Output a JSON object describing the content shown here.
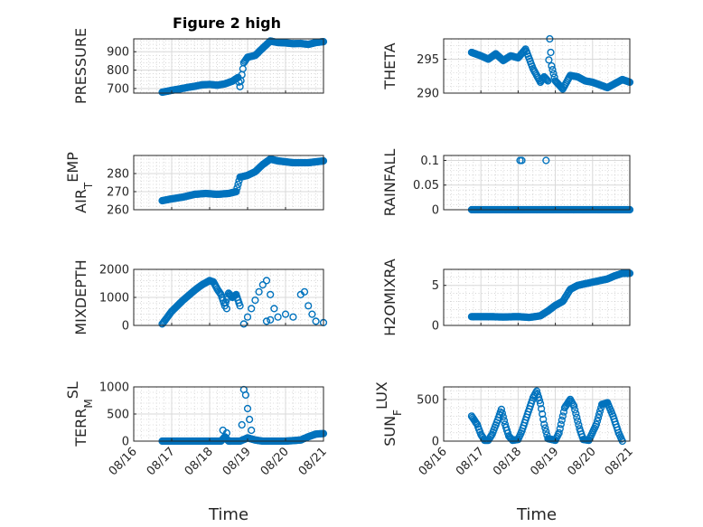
{
  "figure": {
    "title": "Figure 2 high"
  },
  "chart_data": [
    {
      "type": "scatter",
      "ylabel": "PRESSURE",
      "xlabel": "",
      "xlim": [
        0,
        5
      ],
      "ylim": [
        675,
        970
      ],
      "yticks": [
        700,
        800,
        900
      ],
      "xticks": [],
      "grid": true,
      "minor_grid": true,
      "color": "#0072BD",
      "title": "Figure 2 high",
      "keypoints": [
        [
          0.75,
          680
        ],
        [
          0.9,
          686
        ],
        [
          1.0,
          690
        ],
        [
          1.2,
          697
        ],
        [
          1.4,
          705
        ],
        [
          1.6,
          712
        ],
        [
          1.8,
          720
        ],
        [
          2.0,
          722
        ],
        [
          2.2,
          718
        ],
        [
          2.4,
          725
        ],
        [
          2.6,
          740
        ],
        [
          2.75,
          760
        ],
        [
          2.8,
          710
        ],
        [
          2.9,
          840
        ],
        [
          3.0,
          870
        ],
        [
          3.2,
          880
        ],
        [
          3.4,
          920
        ],
        [
          3.6,
          958
        ],
        [
          3.8,
          950
        ],
        [
          4.0,
          948
        ],
        [
          4.2,
          944
        ],
        [
          4.4,
          945
        ],
        [
          4.6,
          940
        ],
        [
          4.8,
          950
        ],
        [
          5.0,
          955
        ]
      ]
    },
    {
      "type": "scatter",
      "ylabel": "THETA",
      "xlabel": "",
      "xlim": [
        0,
        5
      ],
      "ylim": [
        290,
        298
      ],
      "yticks": [
        290,
        295
      ],
      "xticks": [],
      "grid": true,
      "minor_grid": true,
      "color": "#0072BD",
      "keypoints": [
        [
          0.75,
          296
        ],
        [
          1.0,
          295.5
        ],
        [
          1.2,
          295.0
        ],
        [
          1.4,
          295.8
        ],
        [
          1.6,
          294.8
        ],
        [
          1.8,
          295.5
        ],
        [
          2.0,
          295.2
        ],
        [
          2.2,
          296.5
        ],
        [
          2.4,
          293.6
        ],
        [
          2.5,
          292.6
        ],
        [
          2.6,
          291.6
        ],
        [
          2.7,
          292.4
        ],
        [
          2.8,
          291.8
        ],
        [
          2.85,
          298
        ],
        [
          2.9,
          294
        ],
        [
          3.0,
          291.8
        ],
        [
          3.2,
          290.6
        ],
        [
          3.4,
          292.6
        ],
        [
          3.6,
          292.4
        ],
        [
          3.8,
          291.8
        ],
        [
          4.0,
          291.6
        ],
        [
          4.2,
          291.2
        ],
        [
          4.4,
          290.8
        ],
        [
          4.6,
          291.4
        ],
        [
          4.8,
          292.0
        ],
        [
          5.0,
          291.6
        ]
      ]
    },
    {
      "type": "scatter",
      "ylabel": "AIR_TEMP",
      "xlabel": "",
      "xlim": [
        0,
        5
      ],
      "ylim": [
        260,
        290
      ],
      "yticks": [
        260,
        270,
        280
      ],
      "xticks": [],
      "grid": true,
      "minor_grid": true,
      "color": "#0072BD",
      "keypoints": [
        [
          0.75,
          265
        ],
        [
          1.0,
          266
        ],
        [
          1.3,
          267
        ],
        [
          1.6,
          268.5
        ],
        [
          1.9,
          269
        ],
        [
          2.2,
          268.5
        ],
        [
          2.5,
          269
        ],
        [
          2.7,
          270
        ],
        [
          2.8,
          278
        ],
        [
          3.0,
          279
        ],
        [
          3.2,
          281
        ],
        [
          3.4,
          285
        ],
        [
          3.6,
          288
        ],
        [
          3.8,
          287
        ],
        [
          4.2,
          286
        ],
        [
          4.6,
          286
        ],
        [
          5.0,
          287
        ]
      ]
    },
    {
      "type": "scatter",
      "ylabel": "RAINFALL",
      "xlabel": "",
      "xlim": [
        0,
        5
      ],
      "ylim": [
        0,
        0.11
      ],
      "yticks": [
        0,
        0.05,
        0.1
      ],
      "xticks": [],
      "grid": true,
      "minor_grid": true,
      "color": "#0072BD",
      "keypoints": [
        [
          0.75,
          0
        ],
        [
          5.0,
          0
        ]
      ],
      "extra_points": [
        [
          2.05,
          0.1
        ],
        [
          2.1,
          0.1
        ],
        [
          2.75,
          0.1
        ]
      ]
    },
    {
      "type": "scatter",
      "ylabel": "MIXDEPTH",
      "xlabel": "",
      "xlim": [
        0,
        5
      ],
      "ylim": [
        0,
        2000
      ],
      "yticks": [
        0,
        1000,
        2000
      ],
      "xticks": [],
      "grid": true,
      "minor_grid": true,
      "color": "#0072BD",
      "keypoints": [
        [
          0.75,
          50
        ],
        [
          1.0,
          500
        ],
        [
          1.3,
          900
        ],
        [
          1.6,
          1250
        ],
        [
          1.8,
          1450
        ],
        [
          2.0,
          1600
        ],
        [
          2.1,
          1550
        ],
        [
          2.2,
          1300
        ],
        [
          2.3,
          1100
        ],
        [
          2.4,
          700
        ],
        [
          2.5,
          1150
        ],
        [
          2.6,
          1000
        ],
        [
          2.7,
          1100
        ],
        [
          2.8,
          700
        ]
      ],
      "extra_points": [
        [
          2.45,
          600
        ],
        [
          2.9,
          50
        ],
        [
          3.0,
          300
        ],
        [
          3.1,
          600
        ],
        [
          3.2,
          900
        ],
        [
          3.3,
          1200
        ],
        [
          3.4,
          1450
        ],
        [
          3.5,
          1600
        ],
        [
          3.6,
          1100
        ],
        [
          3.7,
          600
        ],
        [
          3.5,
          150
        ],
        [
          3.6,
          200
        ],
        [
          3.8,
          300
        ],
        [
          4.0,
          400
        ],
        [
          4.2,
          300
        ],
        [
          4.4,
          1100
        ],
        [
          4.5,
          1200
        ],
        [
          4.6,
          700
        ],
        [
          4.7,
          400
        ],
        [
          4.8,
          150
        ],
        [
          5.0,
          100
        ]
      ]
    },
    {
      "type": "scatter",
      "ylabel": "H2OMIXRA",
      "xlabel": "",
      "xlim": [
        0,
        5
      ],
      "ylim": [
        0,
        7
      ],
      "yticks": [
        0,
        5
      ],
      "xticks": [],
      "grid": true,
      "minor_grid": true,
      "color": "#0072BD",
      "keypoints": [
        [
          0.75,
          1.1
        ],
        [
          1.2,
          1.1
        ],
        [
          1.6,
          1.05
        ],
        [
          2.0,
          1.1
        ],
        [
          2.3,
          1.0
        ],
        [
          2.6,
          1.2
        ],
        [
          2.8,
          1.8
        ],
        [
          3.0,
          2.5
        ],
        [
          3.2,
          3.0
        ],
        [
          3.4,
          4.5
        ],
        [
          3.6,
          5.0
        ],
        [
          3.8,
          5.2
        ],
        [
          4.0,
          5.4
        ],
        [
          4.2,
          5.6
        ],
        [
          4.4,
          5.8
        ],
        [
          4.6,
          6.2
        ],
        [
          4.8,
          6.5
        ],
        [
          5.0,
          6.5
        ]
      ]
    },
    {
      "type": "scatter",
      "ylabel": "TERR_MSL",
      "xlabel": "Time",
      "xlim": [
        0,
        5
      ],
      "ylim": [
        0,
        1000
      ],
      "yticks": [
        0,
        500,
        1000
      ],
      "xticks": [
        "08/16",
        "08/17",
        "08/18",
        "08/19",
        "08/20",
        "08/21"
      ],
      "grid": true,
      "minor_grid": true,
      "color": "#0072BD",
      "keypoints": [
        [
          0.75,
          0
        ],
        [
          2.3,
          0
        ],
        [
          2.4,
          80
        ],
        [
          2.5,
          0
        ],
        [
          2.8,
          0
        ],
        [
          3.0,
          60
        ],
        [
          3.2,
          20
        ],
        [
          3.4,
          0
        ],
        [
          4.0,
          0
        ],
        [
          4.4,
          20
        ],
        [
          4.6,
          80
        ],
        [
          4.8,
          130
        ],
        [
          5.0,
          140
        ]
      ],
      "extra_points": [
        [
          2.35,
          200
        ],
        [
          2.45,
          150
        ],
        [
          2.85,
          300
        ],
        [
          2.9,
          950
        ],
        [
          2.95,
          850
        ],
        [
          3.0,
          600
        ],
        [
          3.05,
          400
        ],
        [
          3.1,
          200
        ]
      ]
    },
    {
      "type": "scatter",
      "ylabel": "SUN_FLUX",
      "xlabel": "Time",
      "xlim": [
        0,
        5
      ],
      "ylim": [
        0,
        650
      ],
      "yticks": [
        0,
        500
      ],
      "xticks": [
        "08/16",
        "08/17",
        "08/18",
        "08/19",
        "08/20",
        "08/21"
      ],
      "grid": true,
      "minor_grid": true,
      "color": "#0072BD",
      "keypoints": [
        [
          0.75,
          300
        ],
        [
          0.9,
          200
        ],
        [
          1.0,
          80
        ],
        [
          1.1,
          10
        ],
        [
          1.2,
          10
        ],
        [
          1.3,
          80
        ],
        [
          1.45,
          250
        ],
        [
          1.55,
          380
        ],
        [
          1.65,
          200
        ],
        [
          1.75,
          60
        ],
        [
          1.85,
          10
        ],
        [
          2.0,
          20
        ],
        [
          2.1,
          120
        ],
        [
          2.25,
          320
        ],
        [
          2.4,
          520
        ],
        [
          2.5,
          600
        ],
        [
          2.6,
          450
        ],
        [
          2.7,
          200
        ],
        [
          2.8,
          30
        ],
        [
          3.0,
          10
        ],
        [
          3.1,
          100
        ],
        [
          3.25,
          400
        ],
        [
          3.4,
          500
        ],
        [
          3.5,
          420
        ],
        [
          3.65,
          150
        ],
        [
          3.75,
          20
        ],
        [
          3.9,
          10
        ],
        [
          4.1,
          200
        ],
        [
          4.25,
          440
        ],
        [
          4.4,
          460
        ],
        [
          4.55,
          300
        ],
        [
          4.7,
          100
        ],
        [
          4.8,
          0
        ]
      ]
    }
  ]
}
